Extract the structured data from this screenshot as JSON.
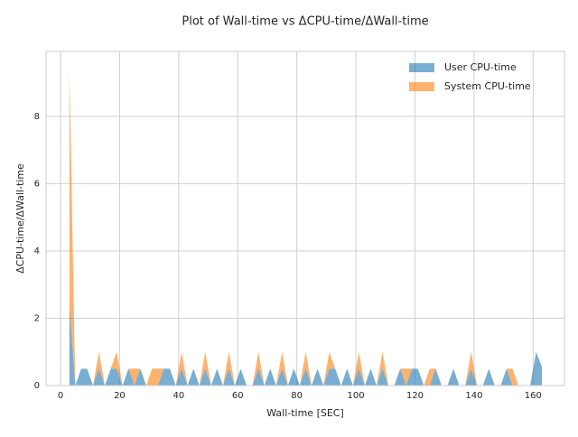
{
  "chart_data": {
    "type": "area",
    "stacked": true,
    "title": "Plot of Wall-time vs ΔCPU-time/ΔWall-time",
    "x_label": "Wall-time [SEC]",
    "y_label": "ΔCPU-time/ΔWall-time",
    "x": [
      3,
      5,
      7,
      9,
      11,
      13,
      15,
      17,
      19,
      21,
      23,
      25,
      27,
      29,
      31,
      33,
      35,
      37,
      39,
      41,
      43,
      45,
      47,
      49,
      51,
      53,
      55,
      57,
      59,
      61,
      63,
      65,
      67,
      69,
      71,
      73,
      75,
      77,
      79,
      81,
      83,
      85,
      87,
      89,
      91,
      93,
      95,
      97,
      99,
      101,
      103,
      105,
      107,
      109,
      111,
      113,
      115,
      117,
      119,
      121,
      123,
      125,
      127,
      129,
      131,
      133,
      135,
      137,
      139,
      141,
      143,
      145,
      147,
      149,
      151,
      153,
      155,
      157,
      159,
      161,
      163
    ],
    "series": [
      {
        "name": "User CPU-time",
        "color": "#1f77b4",
        "values": [
          2.4,
          0,
          0.5,
          0.5,
          0,
          0.5,
          0,
          0.5,
          0.5,
          0,
          0.5,
          0,
          0.5,
          0,
          0,
          0,
          0.5,
          0.5,
          0,
          0.5,
          0,
          0.5,
          0,
          0.5,
          0,
          0.5,
          0,
          0.5,
          0,
          0.5,
          0,
          0,
          0.5,
          0,
          0.5,
          0,
          0.5,
          0,
          0.5,
          0,
          0.5,
          0,
          0.5,
          0,
          0.5,
          0.5,
          0,
          0.5,
          0,
          0.5,
          0,
          0.5,
          0,
          0.5,
          0,
          0,
          0.5,
          0,
          0.5,
          0.5,
          0,
          0,
          0.5,
          0,
          0,
          0.5,
          0,
          0,
          0.5,
          0,
          0,
          0.5,
          0,
          0,
          0.5,
          0,
          0,
          0,
          0,
          1.0,
          0.55
        ]
      },
      {
        "name": "System CPU-time",
        "color": "#ff7f0e",
        "values": [
          7.0,
          0,
          0,
          0,
          0,
          0.5,
          0,
          0,
          0.5,
          0,
          0,
          0.5,
          0,
          0,
          0.5,
          0.5,
          0,
          0,
          0,
          0.5,
          0,
          0,
          0,
          0.5,
          0,
          0,
          0,
          0.5,
          0,
          0,
          0,
          0,
          0.5,
          0,
          0,
          0,
          0.5,
          0,
          0,
          0,
          0.5,
          0,
          0,
          0,
          0.5,
          0,
          0,
          0,
          0,
          0.5,
          0,
          0,
          0,
          0.5,
          0,
          0,
          0,
          0.5,
          0,
          0,
          0,
          0.5,
          0,
          0,
          0,
          0,
          0,
          0,
          0.5,
          0,
          0,
          0,
          0,
          0,
          0,
          0.5,
          0,
          0,
          0,
          0,
          0
        ]
      }
    ],
    "xlim": [
      -4.9,
      170.6
    ],
    "xticks": [
      0,
      20,
      40,
      60,
      80,
      100,
      120,
      140,
      160
    ],
    "ylim": [
      0,
      9.93
    ],
    "yticks": [
      0,
      2,
      4,
      6,
      8
    ],
    "grid": true,
    "legend": "upper right"
  }
}
